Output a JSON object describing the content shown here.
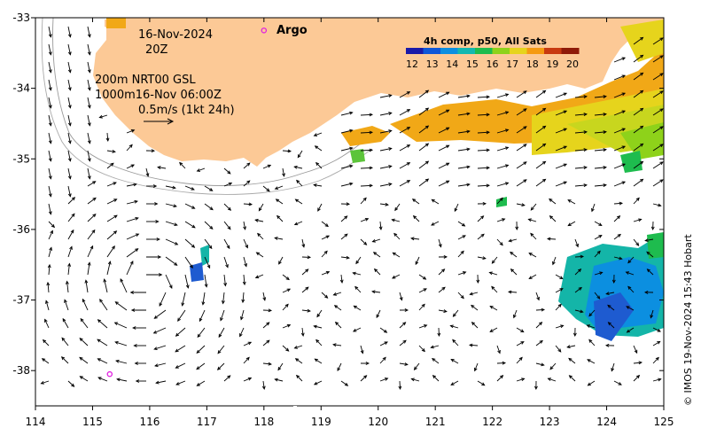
{
  "date_line": "16-Nov-2024",
  "time_line": "20Z",
  "argo_label": "Argo",
  "depth_line_1": "200m  NRT00 GSL",
  "depth_line_2": "1000m16-Nov 06:00Z",
  "scale_label": "0.5m/s (1kt 24h)",
  "colorbar": {
    "title": "4h comp, p50, All Sats",
    "ticks": [
      "12",
      "13",
      "14",
      "15",
      "16",
      "17",
      "18",
      "19",
      "20"
    ],
    "colors": [
      "#1a1aa8",
      "#0f57d8",
      "#0c8fe0",
      "#13b8b0",
      "#1ebc4e",
      "#8ed21a",
      "#e6d41c",
      "#f59a12",
      "#c83a10",
      "#8f1a08"
    ]
  },
  "credit": "© IMOS 19-Nov-2024 15:43 Hobart",
  "colors": {
    "land": "#fcc996",
    "argo": "#e020e0"
  },
  "chart_data": {
    "type": "map",
    "x_ticks": [
      "114",
      "115",
      "116",
      "117",
      "118",
      "119",
      "120",
      "121",
      "122",
      "123",
      "124",
      "125"
    ],
    "y_ticks": [
      "-33",
      "-34",
      "-35",
      "-36",
      "-37",
      "-38"
    ],
    "xlim": [
      114,
      125
    ],
    "ylim": [
      -38.5,
      -33
    ],
    "argo_floats": [
      {
        "lon": 118.0,
        "lat": -33.18
      },
      {
        "lon": 115.3,
        "lat": -38.05
      }
    ]
  }
}
